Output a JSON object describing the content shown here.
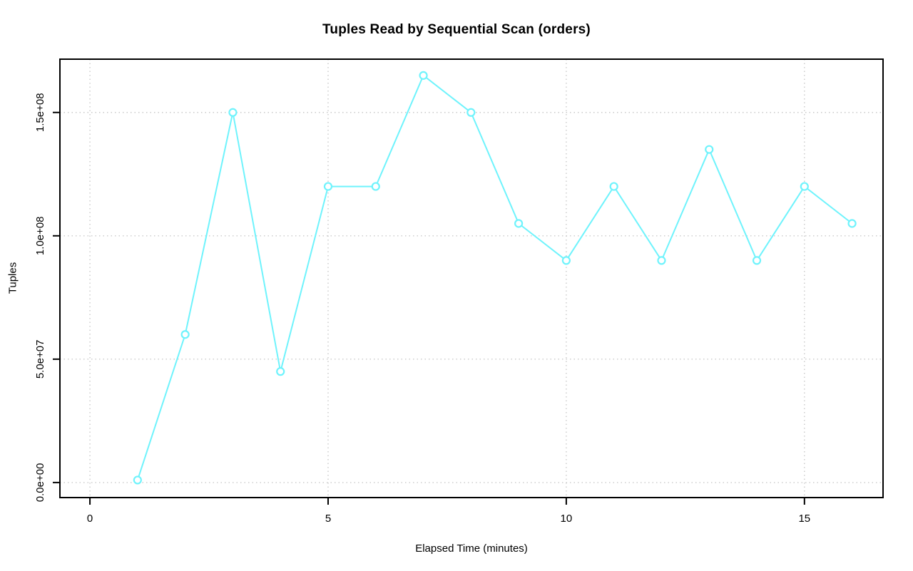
{
  "chart_data": {
    "type": "line",
    "title": "Tuples Read by Sequential Scan (orders)",
    "xlabel": "Elapsed Time (minutes)",
    "ylabel": "Tuples",
    "x": [
      1,
      2,
      3,
      4,
      5,
      6,
      7,
      8,
      9,
      10,
      11,
      12,
      13,
      14,
      15,
      16
    ],
    "y": [
      1000000,
      60000000,
      150000000,
      45000000,
      120000000,
      120000000,
      165000000,
      150000000,
      105000000,
      90000000,
      120000000,
      90000000,
      135000000,
      90000000,
      120000000,
      105000000
    ],
    "xticks": {
      "values": [
        0,
        5,
        10,
        15
      ],
      "labels": [
        "0",
        "5",
        "10",
        "15"
      ]
    },
    "yticks": {
      "values": [
        0,
        50000000,
        100000000,
        150000000
      ],
      "labels": [
        "0.0e+00",
        "5.0e+07",
        "1.0e+08",
        "1.5e+08"
      ]
    },
    "xlim": [
      -0.63,
      16.65
    ],
    "ylim": [
      -6100000,
      171600000
    ],
    "grid": true,
    "legend": false,
    "marker": "open-circle",
    "colors": {
      "line": "#6ff3fc",
      "marker_stroke": "#6ff3fc",
      "marker_fill": "#ffffff",
      "grid": "#c9c9c9",
      "box": "#000000",
      "tick": "#000000",
      "text": "#000000",
      "background": "#ffffff"
    }
  }
}
